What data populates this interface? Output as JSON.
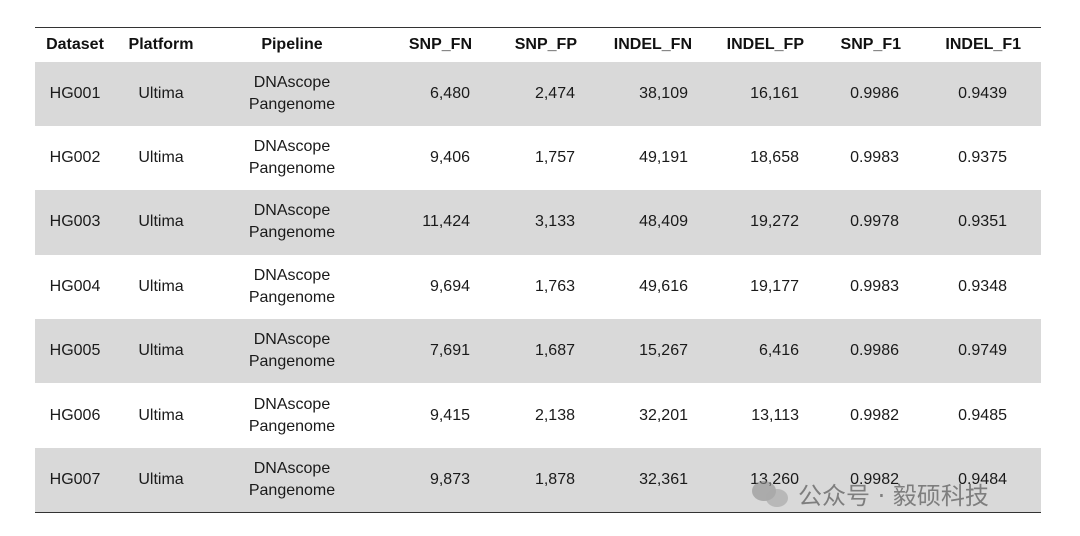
{
  "table": {
    "headers": [
      "Dataset",
      "Platform",
      "Pipeline",
      "SNP_FN",
      "SNP_FP",
      "INDEL_FN",
      "INDEL_FP",
      "SNP_F1",
      "INDEL_F1"
    ],
    "rows": [
      {
        "dataset": "HG001",
        "platform": "Ultima",
        "pipeline_line1": "DNAscope",
        "pipeline_line2": "Pangenome",
        "snp_fn": "6,480",
        "snp_fp": "2,474",
        "indel_fn": "38,109",
        "indel_fp": "16,161",
        "snp_f1": "0.9986",
        "indel_f1": "0.9439"
      },
      {
        "dataset": "HG002",
        "platform": "Ultima",
        "pipeline_line1": "DNAscope",
        "pipeline_line2": "Pangenome",
        "snp_fn": "9,406",
        "snp_fp": "1,757",
        "indel_fn": "49,191",
        "indel_fp": "18,658",
        "snp_f1": "0.9983",
        "indel_f1": "0.9375"
      },
      {
        "dataset": "HG003",
        "platform": "Ultima",
        "pipeline_line1": "DNAscope",
        "pipeline_line2": "Pangenome",
        "snp_fn": "11,424",
        "snp_fp": "3,133",
        "indel_fn": "48,409",
        "indel_fp": "19,272",
        "snp_f1": "0.9978",
        "indel_f1": "0.9351"
      },
      {
        "dataset": "HG004",
        "platform": "Ultima",
        "pipeline_line1": "DNAscope",
        "pipeline_line2": "Pangenome",
        "snp_fn": "9,694",
        "snp_fp": "1,763",
        "indel_fn": "49,616",
        "indel_fp": "19,177",
        "snp_f1": "0.9983",
        "indel_f1": "0.9348"
      },
      {
        "dataset": "HG005",
        "platform": "Ultima",
        "pipeline_line1": "DNAscope",
        "pipeline_line2": "Pangenome",
        "snp_fn": "7,691",
        "snp_fp": "1,687",
        "indel_fn": "15,267",
        "indel_fp": "6,416",
        "snp_f1": "0.9986",
        "indel_f1": "0.9749"
      },
      {
        "dataset": "HG006",
        "platform": "Ultima",
        "pipeline_line1": "DNAscope",
        "pipeline_line2": "Pangenome",
        "snp_fn": "9,415",
        "snp_fp": "2,138",
        "indel_fn": "32,201",
        "indel_fp": "13,113",
        "snp_f1": "0.9982",
        "indel_f1": "0.9485"
      },
      {
        "dataset": "HG007",
        "platform": "Ultima",
        "pipeline_line1": "DNAscope",
        "pipeline_line2": "Pangenome",
        "snp_fn": "9,873",
        "snp_fp": "1,878",
        "indel_fn": "32,361",
        "indel_fp": "13,260",
        "snp_f1": "0.9982",
        "indel_f1": "0.9484"
      }
    ]
  },
  "watermark": {
    "icon": "wechat-icon",
    "text": "公众号 · 毅硕科技"
  }
}
